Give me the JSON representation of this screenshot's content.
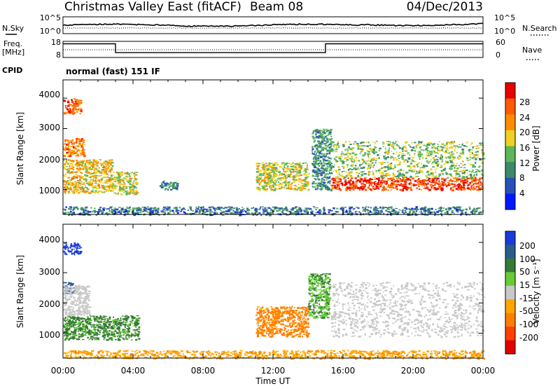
{
  "header": {
    "title": "Christmas Valley East (fitACF)",
    "beam": "Beam 08",
    "date": "04/Dec/2013"
  },
  "noise_panel": {
    "left_label": "N.Sky",
    "left_ticks": [
      "10^5",
      "10^0"
    ],
    "right_ticks": [
      "10^5",
      "10^0"
    ],
    "right_label": "N.Search"
  },
  "freq_panel": {
    "left_label_lines": [
      "Freq.",
      "[MHz]"
    ],
    "left_ticks": [
      "18",
      "8"
    ],
    "right_ticks": [
      "60",
      "0"
    ],
    "right_label": "Nave"
  },
  "cpid": {
    "label": "CPID",
    "value": "normal (fast) 151 IF"
  },
  "axes": {
    "ylabel": "Slant Range [km]",
    "yticks": [
      "4000",
      "3000",
      "2000",
      "1000"
    ],
    "xticks": [
      "00:00",
      "04:00",
      "08:00",
      "12:00",
      "16:00",
      "20:00",
      "00:00"
    ],
    "xlabel": "Time UT"
  },
  "colors": {
    "power": [
      "#0018ff",
      "#2a4fb8",
      "#3c8a6a",
      "#5ab85a",
      "#f0d020",
      "#ff8c00",
      "#ff5a00",
      "#e80000"
    ],
    "velocity": [
      "#1a3bd8",
      "#2b5b8a",
      "#357a35",
      "#66cc33",
      "#c8c8c8",
      "#ffa500",
      "#ff7f00",
      "#ff4000",
      "#e00000"
    ]
  },
  "power_colorbar": {
    "title": "Power [dB]",
    "ticks": [
      "28",
      "24",
      "20",
      "16",
      "12",
      "8",
      "4"
    ]
  },
  "velocity_colorbar": {
    "title": "Velocity [m s⁻¹]",
    "ticks": [
      "200",
      "100",
      "50",
      "15",
      "-15",
      "-50",
      "-100",
      "-200"
    ]
  },
  "chart_data": [
    {
      "type": "heatmap",
      "title": "Power [dB]",
      "xlabel": "Time UT",
      "ylabel": "Slant Range [km]",
      "xlim": [
        0,
        24
      ],
      "ylim": [
        180,
        4600
      ],
      "colorbar_range": [
        0,
        30
      ],
      "grid": false,
      "regions": [
        {
          "t0": 0.0,
          "t1": 1.0,
          "r0": 3500,
          "r1": 4000,
          "value": 24
        },
        {
          "t0": 0.0,
          "t1": 1.2,
          "r0": 2100,
          "r1": 2700,
          "value": 22
        },
        {
          "t0": 0.0,
          "t1": 2.8,
          "r0": 900,
          "r1": 2000,
          "value": 18
        },
        {
          "t0": 2.8,
          "t1": 4.2,
          "r0": 850,
          "r1": 1600,
          "value": 16
        },
        {
          "t0": 5.5,
          "t1": 6.5,
          "r0": 1000,
          "r1": 1300,
          "value": 10
        },
        {
          "t0": 11.0,
          "t1": 14.0,
          "r0": 1000,
          "r1": 1900,
          "value": 16
        },
        {
          "t0": 14.2,
          "t1": 15.3,
          "r0": 1000,
          "r1": 3000,
          "value": 10
        },
        {
          "t0": 15.3,
          "t1": 24.0,
          "r0": 1000,
          "r1": 1400,
          "value": 26
        },
        {
          "t0": 15.3,
          "t1": 24.0,
          "r0": 1400,
          "r1": 2600,
          "value": 14
        },
        {
          "t0": 0.0,
          "t1": 24.0,
          "r0": 180,
          "r1": 450,
          "value": 8
        }
      ]
    },
    {
      "type": "heatmap",
      "title": "Velocity [m s⁻¹]",
      "xlabel": "Time UT",
      "ylabel": "Slant Range [km]",
      "xlim": [
        0,
        24
      ],
      "ylim": [
        180,
        4600
      ],
      "colorbar_range": [
        -200,
        200
      ],
      "grid": false,
      "regions": [
        {
          "t0": 0.0,
          "t1": 1.0,
          "r0": 3600,
          "r1": 4000,
          "value": 200
        },
        {
          "t0": 0.0,
          "t1": 0.6,
          "r0": 2300,
          "r1": 2700,
          "value": 100
        },
        {
          "t0": 0.0,
          "t1": 1.5,
          "r0": 1600,
          "r1": 2600,
          "value": 0
        },
        {
          "t0": 0.0,
          "t1": 4.3,
          "r0": 800,
          "r1": 1600,
          "value": 40
        },
        {
          "t0": 11.0,
          "t1": 14.0,
          "r0": 900,
          "r1": 1900,
          "value": -60
        },
        {
          "t0": 14.0,
          "t1": 15.2,
          "r0": 1500,
          "r1": 3000,
          "value": 30
        },
        {
          "t0": 15.3,
          "t1": 24.0,
          "r0": 900,
          "r1": 2700,
          "value": 0
        },
        {
          "t0": 0.0,
          "t1": 24.0,
          "r0": 180,
          "r1": 450,
          "value": -40
        }
      ]
    },
    {
      "type": "line",
      "title": "",
      "xlabel": "Time UT",
      "ylabel": "Freq. [MHz]",
      "xlim": [
        0,
        24
      ],
      "ylim": [
        8,
        18
      ],
      "series": [
        {
          "x": [
            0.0,
            3.0,
            3.0,
            15.0,
            15.0,
            24.0
          ],
          "values": [
            16.5,
            16.5,
            11.0,
            11.0,
            16.5,
            16.5
          ]
        }
      ]
    }
  ]
}
